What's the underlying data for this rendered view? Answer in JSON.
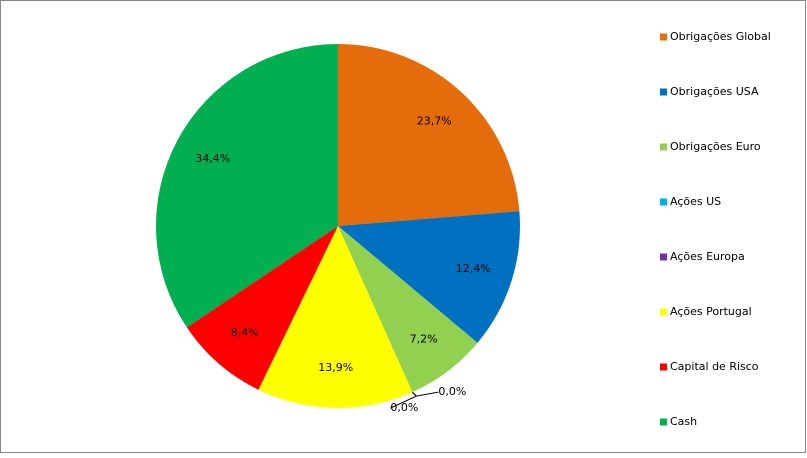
{
  "chart_data": {
    "type": "pie",
    "categories": [
      "Obrigações Global",
      "Obrigações USA",
      "Obrigações Euro",
      "Ações US",
      "Ações Europa",
      "Ações Portugal",
      "Capital de Risco",
      "Cash"
    ],
    "values": [
      23.7,
      12.4,
      7.2,
      0.0,
      0.0,
      13.9,
      8.4,
      34.4
    ],
    "value_labels": [
      "23,7%",
      "12,4%",
      "7,2%",
      "0,0%",
      "0,0%",
      "13,9%",
      "8,4%",
      "34,4%"
    ],
    "colors": [
      "#e46c0a",
      "#0070c0",
      "#92d050",
      "#00b0f0",
      "#7030a0",
      "#ffff00",
      "#ff0000",
      "#00b050"
    ],
    "legend": "right"
  }
}
